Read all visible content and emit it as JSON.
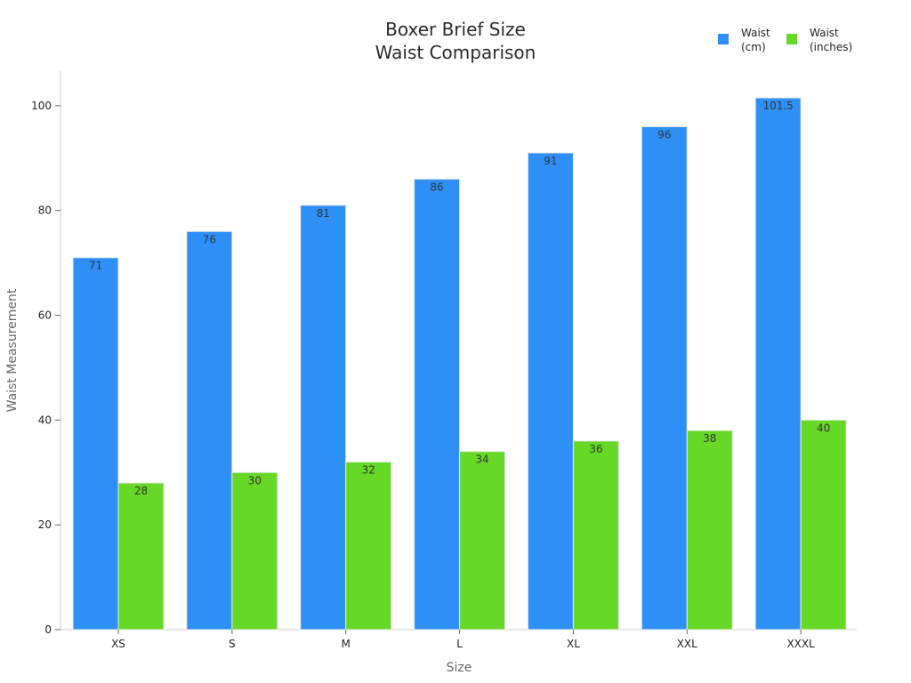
{
  "chart_data": {
    "type": "bar",
    "title_lines": [
      "Boxer Brief Size",
      "Waist Comparison"
    ],
    "xlabel": "Size",
    "ylabel": "Waist Measurement",
    "categories": [
      "XS",
      "S",
      "M",
      "L",
      "XL",
      "XXL",
      "XXXL"
    ],
    "yticks": [
      0,
      20,
      40,
      60,
      80,
      100
    ],
    "ylim": [
      0,
      106.6
    ],
    "grid": false,
    "legend_position": "top-right",
    "series": [
      {
        "name_lines": [
          "Waist",
          "(cm)"
        ],
        "color": "#2e90f7",
        "values": [
          71,
          76,
          81,
          86,
          91,
          96,
          101.5
        ]
      },
      {
        "name_lines": [
          "Waist",
          "(inches)"
        ],
        "color": "#66d926",
        "values": [
          28,
          30,
          32,
          34,
          36,
          38,
          40
        ]
      }
    ]
  }
}
